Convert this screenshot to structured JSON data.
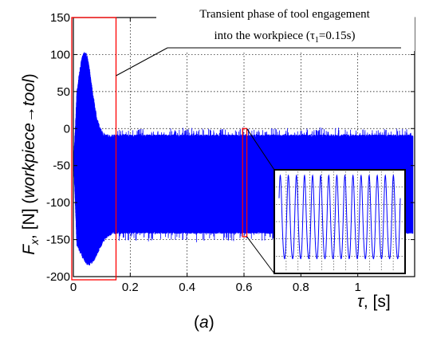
{
  "chart_data": {
    "type": "line",
    "series_color": "#0000ff",
    "highlight_color": "#ff0000",
    "xlim": [
      0,
      1.2
    ],
    "ylim": [
      -200,
      150
    ],
    "x_ticks": [
      0,
      0.2,
      0.4,
      0.6,
      0.8,
      1
    ],
    "x_tick_labels": [
      "0",
      "0.2",
      "0.4",
      "0.6",
      "0.8",
      "1"
    ],
    "y_ticks": [
      -200,
      -150,
      -100,
      -50,
      0,
      50,
      100,
      150
    ],
    "y_tick_labels": [
      "-200",
      "-150",
      "-100",
      "-50",
      "0",
      "50",
      "100",
      "150"
    ],
    "grid": true,
    "ylabel": {
      "main": "F",
      "sub": "x",
      "rest": ", [N] (",
      "italic": "workpiece→tool",
      "close": ")"
    },
    "xlabel": {
      "italic": "τ",
      "rest": ", [s]"
    },
    "annotation": {
      "line1": "Transient phase of tool engagement",
      "line2": "into the workpiece (τ",
      "sub": "1",
      "line2_end": "=0.15s)"
    },
    "caption": {
      "open": "(",
      "italic": "a",
      "close": ")"
    },
    "signal_envelope": {
      "transient_end_s": 0.15,
      "transient_peak": {
        "x": 0.04,
        "max": 105,
        "min": -185
      },
      "steady_state": {
        "max": -8,
        "min": -142
      }
    },
    "highlight_regions": [
      {
        "x_start": 0.0,
        "x_end": 0.15
      },
      {
        "x_start": 0.595,
        "x_end": 0.61
      }
    ],
    "inset": {
      "description_range": "zoom of 0.595–0.61 s",
      "cycles": 15
    }
  }
}
